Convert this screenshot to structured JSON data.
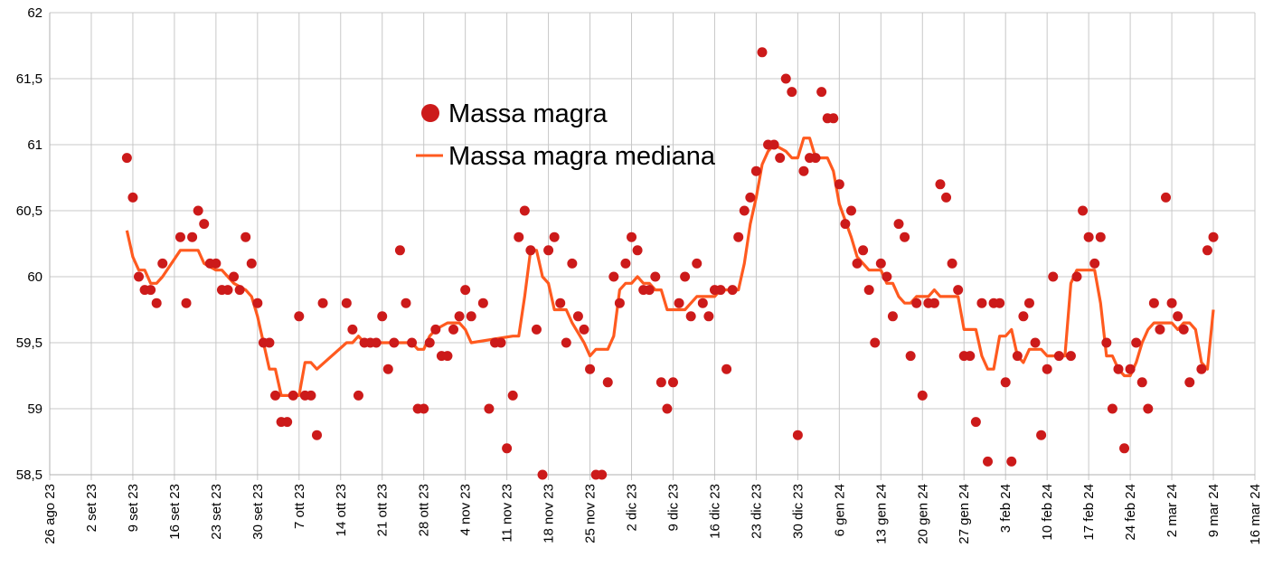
{
  "chart_data": {
    "type": "scatter",
    "title": "",
    "xlabel": "",
    "ylabel": "",
    "x_unit": "days since 26 ago 23",
    "xlim": [
      0,
      203
    ],
    "ylim": [
      58.5,
      62
    ],
    "grid": true,
    "legend_position": "top-center",
    "y_ticks": [
      "58,5",
      "59",
      "59,5",
      "60",
      "60,5",
      "61",
      "61,5",
      "62"
    ],
    "y_tick_values": [
      58.5,
      59,
      59.5,
      60,
      60.5,
      61,
      61.5,
      62
    ],
    "x_ticks": [
      "26 ago 23",
      "2 set 23",
      "9 set 23",
      "16 set 23",
      "23 set 23",
      "30 set 23",
      "7 ott 23",
      "14 ott 23",
      "21 ott 23",
      "28 ott 23",
      "4 nov 23",
      "11 nov 23",
      "18 nov 23",
      "25 nov 23",
      "2 dic 23",
      "9 dic 23",
      "16 dic 23",
      "23 dic 23",
      "30 dic 23",
      "6 gen 24",
      "13 gen 24",
      "20 gen 24",
      "27 gen 24",
      "3 feb 24",
      "10 feb 24",
      "17 feb 24",
      "24 feb 24",
      "2 mar 24",
      "9 mar 24",
      "16 mar 24"
    ],
    "series": [
      {
        "name": "Massa magra",
        "kind": "points",
        "color": "#cc1a1a",
        "points": [
          [
            13,
            60.9
          ],
          [
            14,
            60.6
          ],
          [
            15,
            60.0
          ],
          [
            16,
            59.9
          ],
          [
            17,
            59.9
          ],
          [
            18,
            59.8
          ],
          [
            19,
            60.1
          ],
          [
            22,
            60.3
          ],
          [
            23,
            59.8
          ],
          [
            24,
            60.3
          ],
          [
            25,
            60.5
          ],
          [
            26,
            60.4
          ],
          [
            27,
            60.1
          ],
          [
            28,
            60.1
          ],
          [
            29,
            59.9
          ],
          [
            30,
            59.9
          ],
          [
            31,
            60.0
          ],
          [
            32,
            59.9
          ],
          [
            33,
            60.3
          ],
          [
            34,
            60.1
          ],
          [
            35,
            59.8
          ],
          [
            36,
            59.5
          ],
          [
            37,
            59.5
          ],
          [
            38,
            59.1
          ],
          [
            39,
            58.9
          ],
          [
            40,
            58.9
          ],
          [
            41,
            59.1
          ],
          [
            42,
            59.7
          ],
          [
            43,
            59.1
          ],
          [
            44,
            59.1
          ],
          [
            45,
            58.8
          ],
          [
            46,
            59.8
          ],
          [
            50,
            59.8
          ],
          [
            51,
            59.6
          ],
          [
            52,
            59.1
          ],
          [
            53,
            59.5
          ],
          [
            54,
            59.5
          ],
          [
            55,
            59.5
          ],
          [
            56,
            59.7
          ],
          [
            57,
            59.3
          ],
          [
            58,
            59.5
          ],
          [
            59,
            60.2
          ],
          [
            60,
            59.8
          ],
          [
            61,
            59.5
          ],
          [
            62,
            59.0
          ],
          [
            63,
            59.0
          ],
          [
            64,
            59.5
          ],
          [
            65,
            59.6
          ],
          [
            66,
            59.4
          ],
          [
            67,
            59.4
          ],
          [
            68,
            59.6
          ],
          [
            69,
            59.7
          ],
          [
            70,
            59.9
          ],
          [
            71,
            59.7
          ],
          [
            73,
            59.8
          ],
          [
            74,
            59.0
          ],
          [
            75,
            59.5
          ],
          [
            76,
            59.5
          ],
          [
            77,
            58.7
          ],
          [
            78,
            59.1
          ],
          [
            79,
            60.3
          ],
          [
            80,
            60.5
          ],
          [
            81,
            60.2
          ],
          [
            82,
            59.6
          ],
          [
            83,
            58.5
          ],
          [
            84,
            60.2
          ],
          [
            85,
            60.3
          ],
          [
            86,
            59.8
          ],
          [
            87,
            59.5
          ],
          [
            88,
            60.1
          ],
          [
            89,
            59.7
          ],
          [
            90,
            59.6
          ],
          [
            91,
            59.3
          ],
          [
            92,
            58.5
          ],
          [
            93,
            58.5
          ],
          [
            94,
            59.2
          ],
          [
            95,
            60.0
          ],
          [
            96,
            59.8
          ],
          [
            97,
            60.1
          ],
          [
            98,
            60.3
          ],
          [
            99,
            60.2
          ],
          [
            100,
            59.9
          ],
          [
            101,
            59.9
          ],
          [
            102,
            60.0
          ],
          [
            103,
            59.2
          ],
          [
            104,
            59.0
          ],
          [
            105,
            59.2
          ],
          [
            106,
            59.8
          ],
          [
            107,
            60.0
          ],
          [
            108,
            59.7
          ],
          [
            109,
            60.1
          ],
          [
            110,
            59.8
          ],
          [
            111,
            59.7
          ],
          [
            112,
            59.9
          ],
          [
            113,
            59.9
          ],
          [
            114,
            59.3
          ],
          [
            115,
            59.9
          ],
          [
            116,
            60.3
          ],
          [
            117,
            60.5
          ],
          [
            118,
            60.6
          ],
          [
            119,
            60.8
          ],
          [
            120,
            61.7
          ],
          [
            121,
            61.0
          ],
          [
            122,
            61.0
          ],
          [
            123,
            60.9
          ],
          [
            124,
            61.5
          ],
          [
            125,
            61.4
          ],
          [
            126,
            58.8
          ],
          [
            127,
            60.8
          ],
          [
            128,
            60.9
          ],
          [
            129,
            60.9
          ],
          [
            130,
            61.4
          ],
          [
            131,
            61.2
          ],
          [
            132,
            61.2
          ],
          [
            133,
            60.7
          ],
          [
            134,
            60.4
          ],
          [
            135,
            60.5
          ],
          [
            136,
            60.1
          ],
          [
            137,
            60.2
          ],
          [
            138,
            59.9
          ],
          [
            139,
            59.5
          ],
          [
            140,
            60.1
          ],
          [
            141,
            60.0
          ],
          [
            142,
            59.7
          ],
          [
            143,
            60.4
          ],
          [
            144,
            60.3
          ],
          [
            145,
            59.4
          ],
          [
            146,
            59.8
          ],
          [
            147,
            59.1
          ],
          [
            148,
            59.8
          ],
          [
            149,
            59.8
          ],
          [
            150,
            60.7
          ],
          [
            151,
            60.6
          ],
          [
            152,
            60.1
          ],
          [
            153,
            59.9
          ],
          [
            154,
            59.4
          ],
          [
            155,
            59.4
          ],
          [
            156,
            58.9
          ],
          [
            157,
            59.8
          ],
          [
            158,
            58.6
          ],
          [
            159,
            59.8
          ],
          [
            160,
            59.8
          ],
          [
            161,
            59.2
          ],
          [
            162,
            58.6
          ],
          [
            163,
            59.4
          ],
          [
            164,
            59.7
          ],
          [
            165,
            59.8
          ],
          [
            166,
            59.5
          ],
          [
            167,
            58.8
          ],
          [
            168,
            59.3
          ],
          [
            169,
            60.0
          ],
          [
            170,
            59.4
          ],
          [
            172,
            59.4
          ],
          [
            173,
            60.0
          ],
          [
            174,
            60.5
          ],
          [
            175,
            60.3
          ],
          [
            176,
            60.1
          ],
          [
            177,
            60.3
          ],
          [
            178,
            59.5
          ],
          [
            179,
            59.0
          ],
          [
            180,
            59.3
          ],
          [
            181,
            58.7
          ],
          [
            182,
            59.3
          ],
          [
            183,
            59.5
          ],
          [
            184,
            59.2
          ],
          [
            185,
            59.0
          ],
          [
            186,
            59.8
          ],
          [
            187,
            59.6
          ],
          [
            188,
            60.6
          ],
          [
            189,
            59.8
          ],
          [
            190,
            59.7
          ],
          [
            191,
            59.6
          ],
          [
            192,
            59.2
          ],
          [
            194,
            59.3
          ],
          [
            195,
            60.2
          ],
          [
            196,
            60.3
          ]
        ]
      },
      {
        "name": "Massa magra mediana",
        "kind": "line",
        "color": "#ff5a1f",
        "points": [
          [
            13,
            60.35
          ],
          [
            14,
            60.15
          ],
          [
            15,
            60.05
          ],
          [
            16,
            60.05
          ],
          [
            17,
            59.95
          ],
          [
            18,
            59.95
          ],
          [
            19,
            60.0
          ],
          [
            22,
            60.2
          ],
          [
            25,
            60.2
          ],
          [
            26,
            60.1
          ],
          [
            28,
            60.05
          ],
          [
            29,
            60.05
          ],
          [
            30,
            60.0
          ],
          [
            31,
            59.95
          ],
          [
            33,
            59.9
          ],
          [
            34,
            59.85
          ],
          [
            35,
            59.7
          ],
          [
            36,
            59.5
          ],
          [
            37,
            59.3
          ],
          [
            38,
            59.3
          ],
          [
            39,
            59.1
          ],
          [
            42,
            59.1
          ],
          [
            43,
            59.35
          ],
          [
            44,
            59.35
          ],
          [
            45,
            59.3
          ],
          [
            50,
            59.5
          ],
          [
            51,
            59.5
          ],
          [
            52,
            59.55
          ],
          [
            53,
            59.5
          ],
          [
            61,
            59.5
          ],
          [
            62,
            59.45
          ],
          [
            63,
            59.45
          ],
          [
            64,
            59.55
          ],
          [
            65,
            59.6
          ],
          [
            67,
            59.65
          ],
          [
            69,
            59.65
          ],
          [
            70,
            59.6
          ],
          [
            71,
            59.5
          ],
          [
            78,
            59.55
          ],
          [
            79,
            59.55
          ],
          [
            80,
            59.85
          ],
          [
            81,
            60.2
          ],
          [
            82,
            60.2
          ],
          [
            83,
            60.0
          ],
          [
            84,
            59.95
          ],
          [
            85,
            59.75
          ],
          [
            87,
            59.75
          ],
          [
            88,
            59.65
          ],
          [
            90,
            59.5
          ],
          [
            91,
            59.4
          ],
          [
            92,
            59.45
          ],
          [
            94,
            59.45
          ],
          [
            95,
            59.55
          ],
          [
            96,
            59.9
          ],
          [
            97,
            59.95
          ],
          [
            98,
            59.95
          ],
          [
            99,
            60.0
          ],
          [
            100,
            59.95
          ],
          [
            101,
            59.95
          ],
          [
            102,
            59.9
          ],
          [
            103,
            59.9
          ],
          [
            104,
            59.75
          ],
          [
            107,
            59.75
          ],
          [
            109,
            59.85
          ],
          [
            112,
            59.85
          ],
          [
            113,
            59.9
          ],
          [
            116,
            59.9
          ],
          [
            117,
            60.1
          ],
          [
            118,
            60.4
          ],
          [
            119,
            60.6
          ],
          [
            120,
            60.85
          ],
          [
            121,
            60.95
          ],
          [
            122,
            61.0
          ],
          [
            124,
            60.95
          ],
          [
            125,
            60.9
          ],
          [
            126,
            60.9
          ],
          [
            127,
            61.05
          ],
          [
            128,
            61.05
          ],
          [
            129,
            60.9
          ],
          [
            131,
            60.9
          ],
          [
            132,
            60.8
          ],
          [
            133,
            60.55
          ],
          [
            135,
            60.3
          ],
          [
            136,
            60.15
          ],
          [
            137,
            60.1
          ],
          [
            138,
            60.05
          ],
          [
            140,
            60.05
          ],
          [
            141,
            59.95
          ],
          [
            142,
            59.95
          ],
          [
            143,
            59.85
          ],
          [
            144,
            59.8
          ],
          [
            145,
            59.8
          ],
          [
            146,
            59.85
          ],
          [
            148,
            59.85
          ],
          [
            149,
            59.9
          ],
          [
            150,
            59.85
          ],
          [
            153,
            59.85
          ],
          [
            154,
            59.6
          ],
          [
            156,
            59.6
          ],
          [
            157,
            59.4
          ],
          [
            158,
            59.3
          ],
          [
            159,
            59.3
          ],
          [
            160,
            59.55
          ],
          [
            161,
            59.55
          ],
          [
            162,
            59.6
          ],
          [
            163,
            59.4
          ],
          [
            164,
            59.35
          ],
          [
            165,
            59.45
          ],
          [
            167,
            59.45
          ],
          [
            168,
            59.4
          ],
          [
            171,
            59.4
          ],
          [
            172,
            59.95
          ],
          [
            173,
            60.05
          ],
          [
            176,
            60.05
          ],
          [
            177,
            59.8
          ],
          [
            178,
            59.4
          ],
          [
            179,
            59.4
          ],
          [
            180,
            59.3
          ],
          [
            181,
            59.25
          ],
          [
            182,
            59.25
          ],
          [
            183,
            59.35
          ],
          [
            184,
            59.5
          ],
          [
            185,
            59.6
          ],
          [
            186,
            59.65
          ],
          [
            189,
            59.65
          ],
          [
            190,
            59.6
          ],
          [
            191,
            59.65
          ],
          [
            192,
            59.65
          ],
          [
            193,
            59.6
          ],
          [
            194,
            59.35
          ],
          [
            195,
            59.3
          ],
          [
            196,
            59.75
          ]
        ]
      }
    ]
  }
}
